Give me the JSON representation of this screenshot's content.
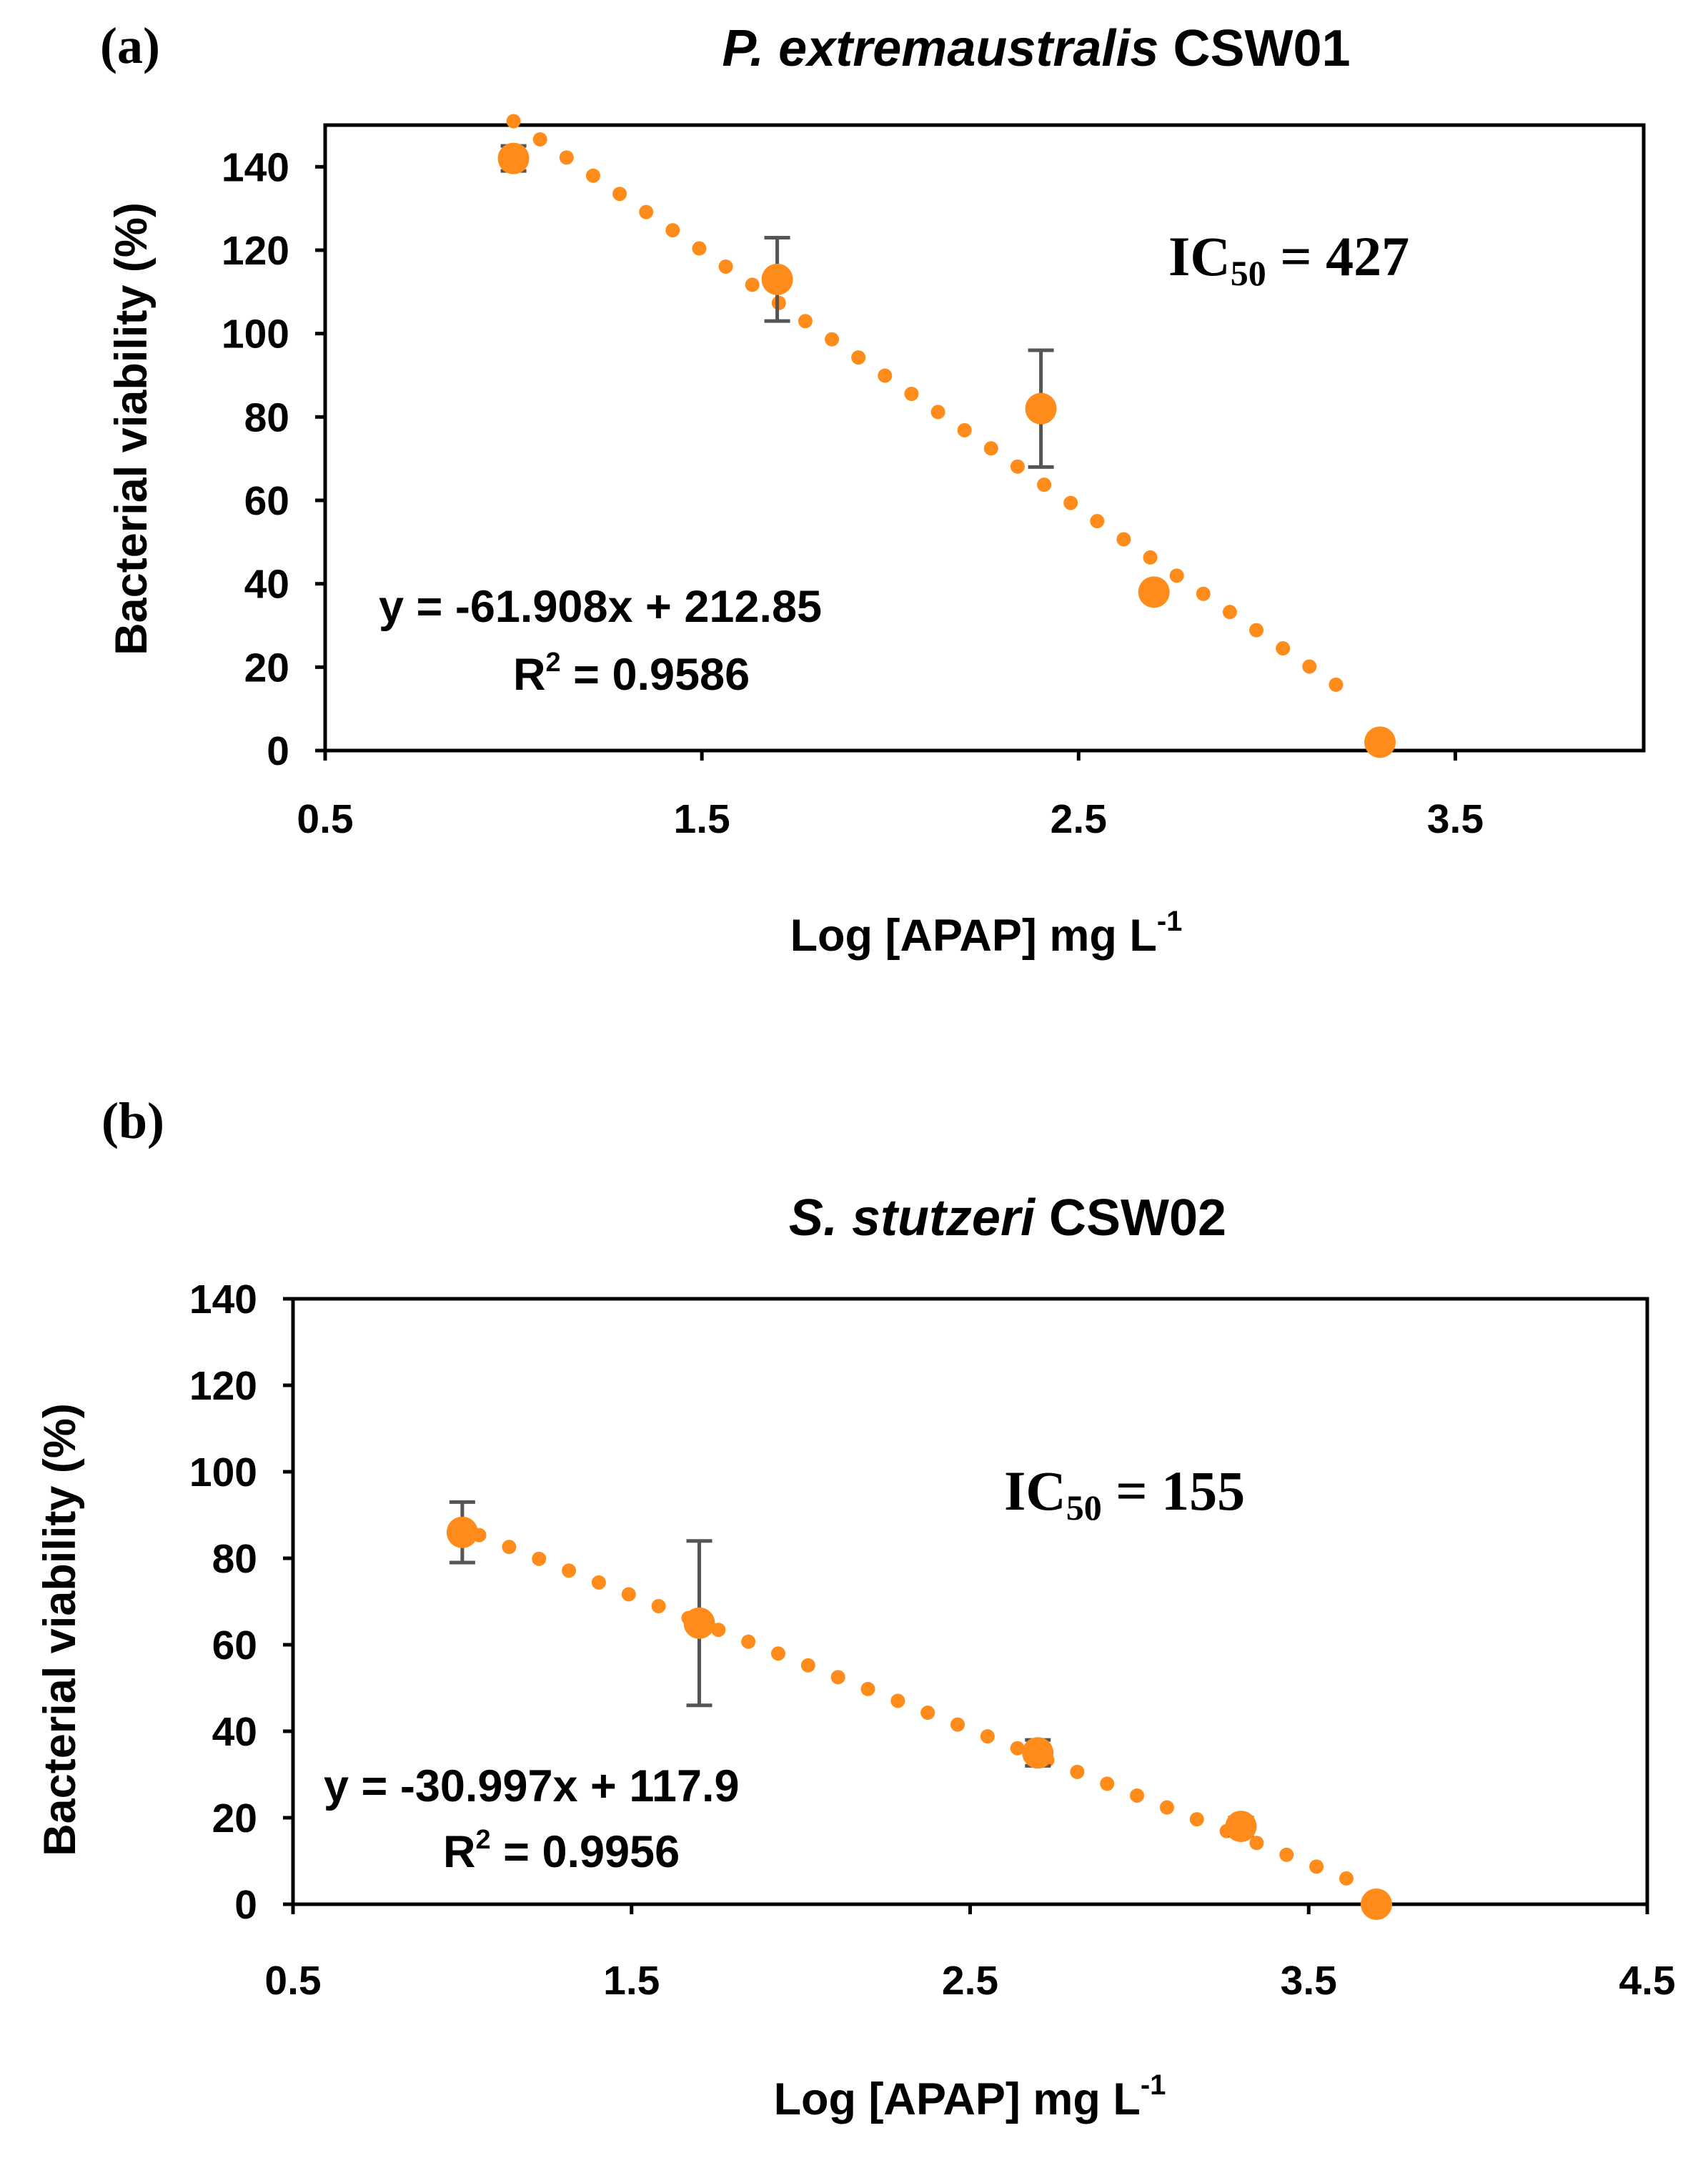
{
  "colors": {
    "marker": "#FF8C1A",
    "trend": "#FF8C1A",
    "errorbar": "#555555",
    "axis": "#000000"
  },
  "chart_data": [
    {
      "type": "scatter",
      "panel_label": "(a)",
      "title_italic": "P. extremaustralis",
      "title_rest": " CSW01",
      "xlabel": "Log [APAP] mg L",
      "xlabel_sup": "-1",
      "ylabel": "Bacterial viability (%)",
      "xlim": [
        0.5,
        4.0
      ],
      "ylim": [
        0,
        150
      ],
      "xticks": [
        0.5,
        1.5,
        2.5,
        3.5
      ],
      "xtick_labels": [
        "0.5",
        "1.5",
        "2.5",
        "3.5"
      ],
      "yticks": [
        0,
        20,
        40,
        60,
        80,
        100,
        120,
        140
      ],
      "ytick_labels": [
        "0",
        "20",
        "40",
        "60",
        "80",
        "100",
        "120",
        "140"
      ],
      "points": [
        {
          "x": 1.0,
          "y": 142,
          "err": 3
        },
        {
          "x": 1.7,
          "y": 113,
          "err": 10
        },
        {
          "x": 2.4,
          "y": 82,
          "err": 14
        },
        {
          "x": 2.7,
          "y": 38,
          "err": 1
        },
        {
          "x": 3.3,
          "y": 2,
          "err": 0
        }
      ],
      "trendline": {
        "type": "linear",
        "slope": -61.908,
        "intercept": 212.85,
        "x_range": [
          1.0,
          3.25
        ]
      },
      "equation": "y = -61.908x + 212.85",
      "r2_prefix": "R",
      "r2_sup": "2",
      "r2_value": " = 0.9586",
      "ic50_prefix": "IC",
      "ic50_sub": "50",
      "ic50_value": " = 427"
    },
    {
      "type": "scatter",
      "panel_label": "(b)",
      "title_italic": "S. stutzeri",
      "title_rest": " CSW02",
      "xlabel": "Log [APAP] mg L",
      "xlabel_sup": "-1",
      "ylabel": "Bacterial viability (%)",
      "xlim": [
        0.5,
        4.5
      ],
      "ylim": [
        0,
        140
      ],
      "xticks": [
        0.5,
        1.5,
        2.5,
        3.5,
        4.5
      ],
      "xtick_labels": [
        "0.5",
        "1.5",
        "2.5",
        "3.5",
        "4.5"
      ],
      "yticks": [
        0,
        20,
        40,
        60,
        80,
        100,
        120,
        140
      ],
      "ytick_labels": [
        "0",
        "20",
        "40",
        "60",
        "80",
        "100",
        "120",
        "140"
      ],
      "points": [
        {
          "x": 1.0,
          "y": 86,
          "err": 7
        },
        {
          "x": 1.7,
          "y": 65,
          "err": 19
        },
        {
          "x": 2.7,
          "y": 35,
          "err": 3
        },
        {
          "x": 3.3,
          "y": 18,
          "err": 2
        },
        {
          "x": 3.7,
          "y": 0,
          "err": 0
        }
      ],
      "trendline": {
        "type": "linear",
        "slope": -30.997,
        "intercept": 117.9,
        "x_range": [
          1.05,
          3.68
        ]
      },
      "equation": "y = -30.997x + 117.9",
      "r2_prefix": "R",
      "r2_sup": "2",
      "r2_value": " = 0.9956",
      "ic50_prefix": "IC",
      "ic50_sub": "50",
      "ic50_value": " = 155"
    }
  ]
}
